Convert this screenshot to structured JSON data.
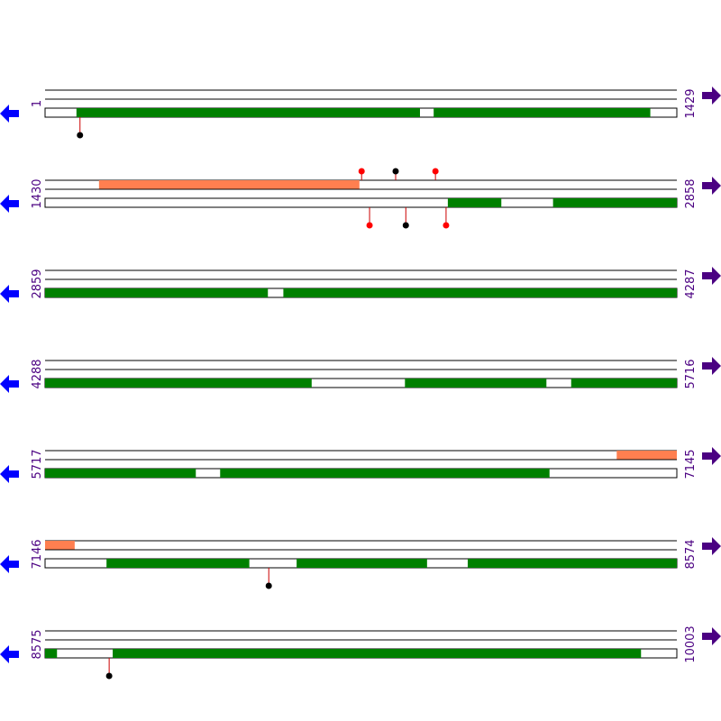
{
  "colors": {
    "background": "#ffffff",
    "track_line": "#000000",
    "track_base": "#ffffff",
    "green_block": "#008000",
    "salmon_block": "#ff7f50",
    "coordinate_text": "#4b0082",
    "left_arrow": "#0000ff",
    "right_arrow": "#4b0082",
    "stem": "#cc0000",
    "marker_red": "#ff0000",
    "marker_black": "#000000"
  },
  "icons": {
    "left": "left-arrow-icon",
    "right": "right-arrow-icon"
  },
  "rows": [
    {
      "start": "1",
      "end": "1429",
      "min": 1,
      "max": 1429,
      "tracks": [
        {
          "segments": []
        },
        {
          "segments": []
        },
        {
          "segments": [
            {
              "from": 72,
              "to": 848,
              "color": "green"
            },
            {
              "from": 880,
              "to": 1369,
              "color": "green"
            }
          ]
        }
      ],
      "markers": [
        {
          "pos": 80,
          "dir": "below",
          "color": "black"
        }
      ]
    },
    {
      "start": "1430",
      "end": "2858",
      "min": 1430,
      "max": 2858,
      "tracks": [
        {
          "segments": [
            {
              "from": 1552,
              "to": 2140,
              "color": "salmon"
            }
          ]
        },
        {
          "segments": []
        },
        {
          "segments": [
            {
              "from": 2341,
              "to": 2461,
              "color": "green"
            },
            {
              "from": 2579,
              "to": 2858,
              "color": "green"
            }
          ]
        }
      ],
      "markers": [
        {
          "pos": 2146,
          "dir": "above",
          "color": "red"
        },
        {
          "pos": 2223,
          "dir": "above",
          "color": "black"
        },
        {
          "pos": 2313,
          "dir": "above",
          "color": "red"
        },
        {
          "pos": 2164,
          "dir": "below",
          "color": "red"
        },
        {
          "pos": 2246,
          "dir": "below",
          "color": "black"
        },
        {
          "pos": 2337,
          "dir": "below",
          "color": "red"
        }
      ]
    },
    {
      "start": "2859",
      "end": "4287",
      "min": 2859,
      "max": 4287,
      "tracks": [
        {
          "segments": []
        },
        {
          "segments": []
        },
        {
          "segments": [
            {
              "from": 2859,
              "to": 3362,
              "color": "green"
            },
            {
              "from": 3398,
              "to": 4287,
              "color": "green"
            }
          ]
        }
      ],
      "markers": []
    },
    {
      "start": "4288",
      "end": "5716",
      "min": 4288,
      "max": 5716,
      "tracks": [
        {
          "segments": []
        },
        {
          "segments": []
        },
        {
          "segments": [
            {
              "from": 4288,
              "to": 4890,
              "color": "green"
            },
            {
              "from": 5102,
              "to": 5421,
              "color": "green"
            },
            {
              "from": 5478,
              "to": 5716,
              "color": "green"
            }
          ]
        }
      ],
      "markers": []
    },
    {
      "start": "5717",
      "end": "7145",
      "min": 5717,
      "max": 7145,
      "tracks": [
        {
          "segments": [
            {
              "from": 7010,
              "to": 7145,
              "color": "salmon"
            }
          ]
        },
        {
          "segments": []
        },
        {
          "segments": [
            {
              "from": 5717,
              "to": 6057,
              "color": "green"
            },
            {
              "from": 6113,
              "to": 6857,
              "color": "green"
            }
          ]
        }
      ],
      "markers": []
    },
    {
      "start": "7146",
      "end": "8574",
      "min": 7146,
      "max": 8574,
      "tracks": [
        {
          "segments": [
            {
              "from": 7146,
              "to": 7212,
              "color": "salmon"
            }
          ]
        },
        {
          "segments": []
        },
        {
          "segments": [
            {
              "from": 7285,
              "to": 7607,
              "color": "green"
            },
            {
              "from": 7715,
              "to": 8009,
              "color": "green"
            },
            {
              "from": 8102,
              "to": 8574,
              "color": "green"
            }
          ]
        }
      ],
      "markers": [
        {
          "pos": 7652,
          "dir": "below",
          "color": "black"
        }
      ]
    },
    {
      "start": "8575",
      "end": "10003",
      "min": 8575,
      "max": 10003,
      "tracks": [
        {
          "segments": []
        },
        {
          "segments": []
        },
        {
          "segments": [
            {
              "from": 8575,
              "to": 8601,
              "color": "green"
            },
            {
              "from": 8728,
              "to": 9922,
              "color": "green"
            }
          ]
        }
      ],
      "markers": [
        {
          "pos": 8720,
          "dir": "below",
          "color": "black"
        }
      ]
    }
  ]
}
